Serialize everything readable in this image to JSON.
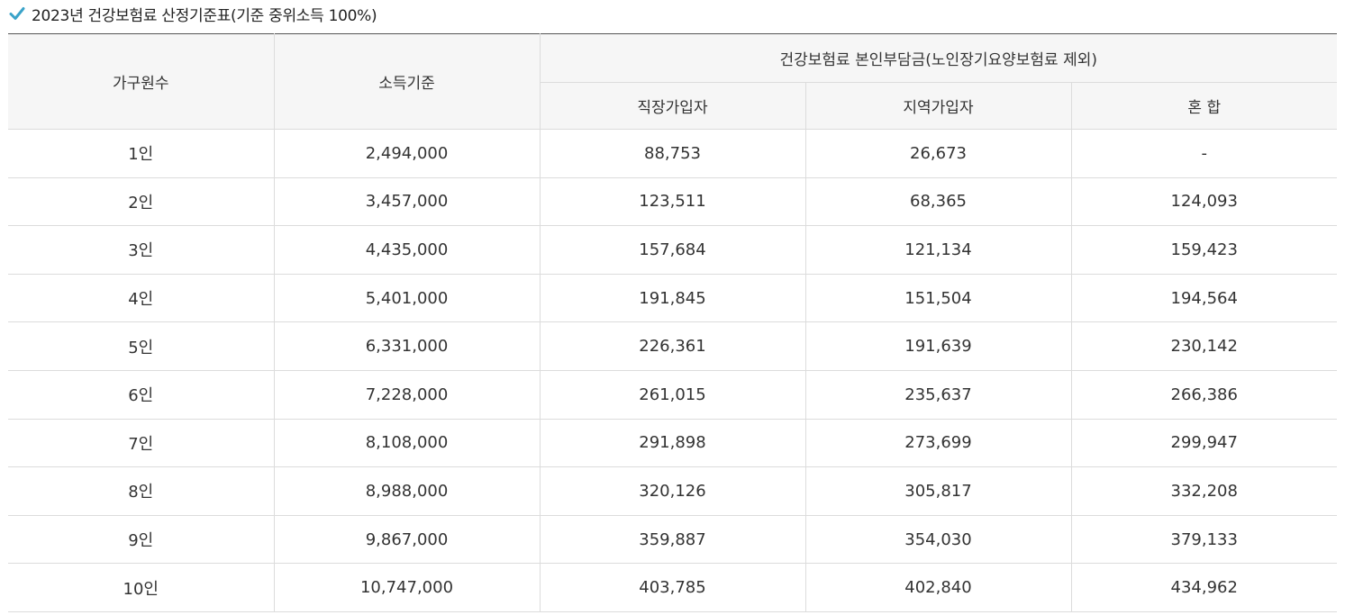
{
  "title": "2023년 건강보험료 산정기준표(기준 중위소득 100%)",
  "table": {
    "headers": {
      "household": "가구원수",
      "income": "소득기준",
      "group": "건강보험료 본인부담금(노인장기요양보험료 제외)",
      "workplace": "직장가입자",
      "regional": "지역가입자",
      "mixed": "혼 합"
    },
    "rows": [
      {
        "household": "1인",
        "income": "2,494,000",
        "workplace": "88,753",
        "regional": "26,673",
        "mixed": "-"
      },
      {
        "household": "2인",
        "income": "3,457,000",
        "workplace": "123,511",
        "regional": "68,365",
        "mixed": "124,093"
      },
      {
        "household": "3인",
        "income": "4,435,000",
        "workplace": "157,684",
        "regional": "121,134",
        "mixed": "159,423"
      },
      {
        "household": "4인",
        "income": "5,401,000",
        "workplace": "191,845",
        "regional": "151,504",
        "mixed": "194,564"
      },
      {
        "household": "5인",
        "income": "6,331,000",
        "workplace": "226,361",
        "regional": "191,639",
        "mixed": "230,142"
      },
      {
        "household": "6인",
        "income": "7,228,000",
        "workplace": "261,015",
        "regional": "235,637",
        "mixed": "266,386"
      },
      {
        "household": "7인",
        "income": "8,108,000",
        "workplace": "291,898",
        "regional": "273,699",
        "mixed": "299,947"
      },
      {
        "household": "8인",
        "income": "8,988,000",
        "workplace": "320,126",
        "regional": "305,817",
        "mixed": "332,208"
      },
      {
        "household": "9인",
        "income": "9,867,000",
        "workplace": "359,887",
        "regional": "354,030",
        "mixed": "379,133"
      },
      {
        "household": "10인",
        "income": "10,747,000",
        "workplace": "403,785",
        "regional": "402,840",
        "mixed": "434,962"
      }
    ]
  },
  "icons": {
    "title_marker": "check-icon"
  },
  "colors": {
    "check": "#3aa3c9",
    "header_bg": "#f6f6f6",
    "top_border": "#555555"
  }
}
